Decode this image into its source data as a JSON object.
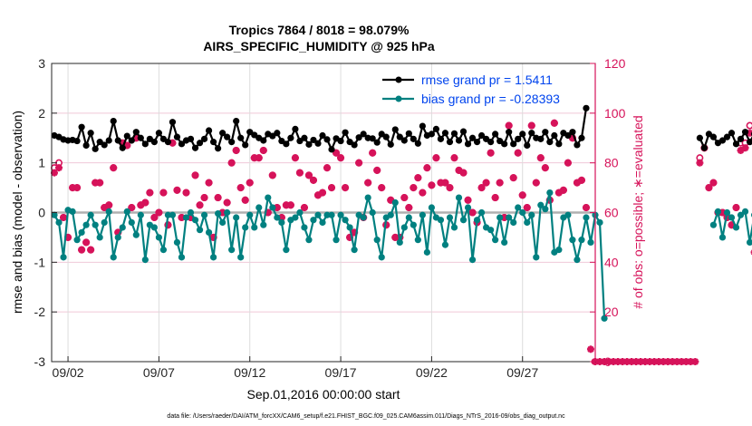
{
  "chart_data": {
    "type": "line",
    "title": "Tropics 7864 / 8018 = 98.079%",
    "subtitle": "AIRS_SPECIFIC_HUMIDITY @ 925 hPa",
    "xlabel": "Sep.01,2016 00:00:00 start",
    "ylabel_left": "rmse and bias (model - observation)",
    "ylabel_right": "# of obs: o=possible; ∗=evaluated",
    "footer": "data file: /Users/raeder/DAI/ATM_forcXX/CAM6_setup/f.e21.FHIST_BGC.f09_025.CAM6assim.011/Diags_NTrS_2016-09/obs_diag_output.nc",
    "x_tick_labels": [
      "09/02",
      "09/07",
      "09/12",
      "09/17",
      "09/22",
      "09/27"
    ],
    "x_tick_days": [
      2,
      7,
      12,
      17,
      22,
      27
    ],
    "xlim_days": [
      1.1,
      31.0
    ],
    "ylim_left": [
      -3,
      3
    ],
    "yticks_left": [
      "-3",
      "-2",
      "-1",
      "0",
      "1",
      "2",
      "3"
    ],
    "ylim_right": [
      0,
      120
    ],
    "yticks_right": [
      "0",
      "20",
      "40",
      "60",
      "80",
      "100",
      "120"
    ],
    "grid": true,
    "legend_placement": "top-right",
    "legend": [
      "rmse grand pr = 1.5411",
      "bias grand pr = -0.28393"
    ],
    "colors": {
      "rmse": "#000000",
      "bias": "#008080",
      "obs": "#d6135a",
      "legend_text": "#0044ee",
      "zero_line": "#b0b0b0",
      "grid": "#f0c8d8"
    },
    "time_step_hours": 6,
    "start_day": 1.25,
    "series": [
      {
        "name": "rmse",
        "axis": "left",
        "values": [
          1.55,
          1.52,
          1.47,
          1.45,
          1.46,
          1.44,
          1.72,
          1.35,
          1.6,
          1.28,
          1.42,
          1.36,
          1.45,
          1.84,
          1.45,
          1.3,
          1.54,
          1.45,
          1.62,
          1.5,
          1.38,
          1.48,
          1.42,
          1.6,
          1.48,
          1.42,
          1.82,
          1.52,
          1.38,
          1.45,
          1.48,
          1.3,
          1.4,
          1.48,
          1.65,
          1.42,
          1.29,
          1.6,
          1.52,
          1.42,
          1.84,
          1.5,
          1.36,
          1.62,
          1.56,
          1.5,
          1.45,
          1.58,
          1.54,
          1.6,
          1.44,
          1.38,
          1.5,
          1.68,
          1.44,
          1.5,
          1.37,
          1.46,
          1.39,
          1.55,
          1.47,
          1.27,
          1.49,
          1.44,
          1.61,
          1.42,
          1.36,
          1.51,
          1.58,
          1.5,
          1.49,
          1.41,
          1.58,
          1.52,
          1.37,
          1.67,
          1.52,
          1.45,
          1.59,
          1.48,
          1.39,
          1.74,
          1.55,
          1.58,
          1.68,
          1.48,
          1.6,
          1.42,
          1.59,
          1.45,
          1.63,
          1.38,
          1.5,
          1.42,
          1.55,
          1.48,
          1.42,
          1.58,
          1.44,
          1.38,
          1.62,
          1.38,
          1.48,
          1.58,
          1.35,
          1.6,
          1.5,
          1.48,
          1.62,
          1.42,
          1.55,
          1.38,
          1.6,
          1.55,
          1.62,
          1.36,
          1.5,
          2.1,
          null,
          null,
          null,
          null,
          null,
          null,
          null,
          null,
          null,
          null,
          null,
          null,
          null,
          null,
          null,
          null,
          null,
          null,
          null,
          null,
          null,
          null,
          null,
          null,
          1.5,
          1.3,
          1.58,
          1.52,
          1.4,
          1.45,
          1.52,
          1.6,
          1.38,
          1.48,
          1.62,
          1.42,
          1.58,
          1.52,
          1.73,
          1.85
        ]
      },
      {
        "name": "bias",
        "axis": "left",
        "values": [
          -0.05,
          -0.2,
          -0.9,
          0.05,
          0.02,
          -0.55,
          -0.4,
          -0.25,
          -0.05,
          -0.25,
          -0.5,
          -0.2,
          0.02,
          -0.9,
          -0.5,
          -0.3,
          0.02,
          -0.2,
          -0.45,
          -0.05,
          -0.95,
          -0.25,
          -0.3,
          -0.5,
          -0.75,
          -0.05,
          -0.05,
          -0.6,
          -0.9,
          -0.1,
          0.0,
          -0.15,
          -0.35,
          -0.05,
          -0.4,
          -0.9,
          -0.02,
          -0.2,
          0.0,
          -0.75,
          -0.1,
          -0.9,
          -0.3,
          -0.05,
          -0.3,
          0.1,
          -0.25,
          0.3,
          0.1,
          -0.1,
          -0.2,
          -0.75,
          -0.15,
          -0.1,
          0.0,
          -0.3,
          -0.55,
          -0.15,
          -0.05,
          -0.2,
          -0.05,
          -0.05,
          -0.55,
          -0.05,
          -0.15,
          -0.3,
          -0.75,
          -0.05,
          -0.1,
          0.3,
          0.0,
          -0.55,
          -0.9,
          -0.1,
          -0.05,
          0.2,
          -0.6,
          -0.3,
          -0.1,
          -0.25,
          -0.55,
          -0.05,
          -0.8,
          0.1,
          -0.1,
          -0.15,
          -0.65,
          -0.1,
          -0.3,
          0.3,
          -0.15,
          0.1,
          -0.95,
          -0.15,
          0.0,
          -0.3,
          -0.35,
          -0.55,
          -0.1,
          -0.6,
          -0.1,
          -0.2,
          0.1,
          0.0,
          -0.2,
          -0.05,
          -0.9,
          0.15,
          0.07,
          0.4,
          -0.8,
          -0.75,
          -0.1,
          -0.05,
          -0.55,
          -0.95,
          -0.55,
          -0.1,
          -0.6,
          -0.05,
          -0.2,
          -2.13,
          null,
          null,
          null,
          null,
          null,
          null,
          null,
          null,
          null,
          null,
          null,
          null,
          null,
          null,
          null,
          null,
          null,
          null,
          null,
          null,
          null,
          null,
          null,
          -0.25,
          0.02,
          -0.5,
          0.0,
          -0.1,
          -0.3,
          -0.05,
          0.02,
          -0.6,
          -0.05,
          -0.05,
          -0.25,
          -0.4,
          -0.3,
          -0.85,
          -0.35
        ]
      },
      {
        "name": "obs_possible",
        "axis": "right",
        "values": [
          78,
          80,
          58,
          50,
          70,
          70,
          45,
          48,
          45,
          72,
          72,
          62,
          63,
          78,
          52,
          88,
          87,
          62,
          90,
          63,
          64,
          68,
          58,
          60,
          68,
          55,
          88,
          69,
          58,
          68,
          58,
          75,
          63,
          66,
          72,
          50,
          66,
          60,
          64,
          80,
          85,
          70,
          65,
          72,
          82,
          82,
          85,
          60,
          75,
          62,
          58,
          63,
          63,
          82,
          76,
          62,
          75,
          73,
          67,
          68,
          78,
          70,
          84,
          82,
          70,
          50,
          52,
          80,
          58,
          72,
          84,
          77,
          70,
          55,
          65,
          50,
          50,
          66,
          62,
          70,
          74,
          68,
          78,
          71,
          82,
          72,
          72,
          70,
          82,
          77,
          76,
          65,
          60,
          56,
          70,
          72,
          84,
          66,
          72,
          58,
          95,
          74,
          84,
          67,
          62,
          95,
          72,
          82,
          78,
          65,
          96,
          68,
          69,
          80,
          90,
          72,
          73,
          62,
          null,
          null,
          null,
          null,
          null,
          null,
          null,
          null,
          null,
          null,
          null,
          null,
          null,
          null,
          null,
          null,
          null,
          null,
          null,
          null,
          null,
          null,
          null,
          null,
          82,
          86,
          70,
          72,
          60,
          60,
          58,
          55,
          62,
          88,
          88,
          95,
          48,
          100,
          100,
          92
        ]
      },
      {
        "name": "obs_evaluated",
        "axis": "right",
        "values": [
          76,
          78,
          58,
          50,
          70,
          70,
          45,
          48,
          45,
          72,
          72,
          62,
          63,
          78,
          52,
          88,
          87,
          62,
          90,
          63,
          64,
          68,
          58,
          60,
          68,
          55,
          88,
          69,
          58,
          68,
          58,
          75,
          63,
          66,
          72,
          50,
          66,
          60,
          64,
          80,
          85,
          70,
          65,
          72,
          82,
          82,
          85,
          60,
          75,
          62,
          58,
          63,
          63,
          82,
          76,
          62,
          75,
          73,
          67,
          68,
          78,
          70,
          84,
          82,
          70,
          50,
          52,
          80,
          58,
          72,
          84,
          77,
          70,
          55,
          65,
          50,
          50,
          66,
          62,
          70,
          74,
          68,
          78,
          71,
          82,
          72,
          72,
          70,
          82,
          77,
          76,
          65,
          60,
          56,
          70,
          72,
          84,
          66,
          72,
          58,
          95,
          74,
          84,
          67,
          62,
          95,
          72,
          82,
          78,
          65,
          96,
          68,
          69,
          80,
          90,
          72,
          73,
          62,
          5,
          0,
          0,
          0,
          0,
          0,
          0,
          0,
          0,
          0,
          0,
          0,
          0,
          0,
          0,
          0,
          0,
          0,
          0,
          0,
          0,
          0,
          0,
          0,
          80,
          86,
          70,
          72,
          60,
          60,
          58,
          55,
          62,
          85,
          86,
          92,
          44,
          95,
          97,
          90
        ]
      }
    ],
    "last_isolated_obs": {
      "day": 30.95,
      "value": 0
    }
  }
}
